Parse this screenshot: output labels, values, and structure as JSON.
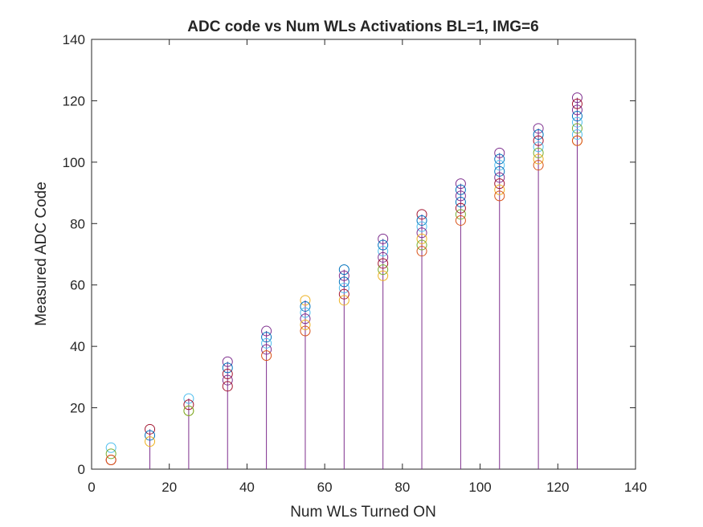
{
  "chart_data": {
    "type": "scatter",
    "title": "ADC code vs Num WLs Activations BL=1, IMG=6",
    "xlabel": "Num WLs Turned ON",
    "ylabel": "Measured ADC Code",
    "xlim": [
      0,
      140
    ],
    "ylim": [
      0,
      140
    ],
    "xticks": [
      "0",
      "20",
      "40",
      "60",
      "80",
      "100",
      "120",
      "140"
    ],
    "yticks": [
      "0",
      "20",
      "40",
      "60",
      "80",
      "100",
      "120",
      "140"
    ],
    "grid": false,
    "legend": "none",
    "marker": "circle",
    "stems": {
      "x": [
        15,
        25,
        35,
        45,
        55,
        65,
        75,
        85,
        95,
        105,
        115,
        125
      ],
      "y": [
        13,
        23,
        35,
        45,
        55,
        65,
        75,
        83,
        93,
        103,
        111,
        121
      ],
      "color": "#7E2F8E"
    },
    "series_colors": [
      "#0072BD",
      "#D95319",
      "#EDB120",
      "#7E2F8E",
      "#77AC30",
      "#4DBEEE",
      "#A2142F"
    ],
    "points": [
      {
        "x": 5,
        "y": 7,
        "color": "#4DBEEE"
      },
      {
        "x": 5,
        "y": 5,
        "color": "#77AC30"
      },
      {
        "x": 5,
        "y": 3,
        "color": "#A2142F"
      },
      {
        "x": 5,
        "y": 3,
        "color": "#D95319"
      },
      {
        "x": 15,
        "y": 13,
        "color": "#A2142F"
      },
      {
        "x": 15,
        "y": 11,
        "color": "#0072BD"
      },
      {
        "x": 15,
        "y": 9,
        "color": "#EDB120"
      },
      {
        "x": 25,
        "y": 23,
        "color": "#4DBEEE"
      },
      {
        "x": 25,
        "y": 21,
        "color": "#A2142F"
      },
      {
        "x": 25,
        "y": 19,
        "color": "#EDB120"
      },
      {
        "x": 25,
        "y": 19,
        "color": "#77AC30"
      },
      {
        "x": 35,
        "y": 35,
        "color": "#7E2F8E"
      },
      {
        "x": 35,
        "y": 33,
        "color": "#0072BD"
      },
      {
        "x": 35,
        "y": 31,
        "color": "#A2142F"
      },
      {
        "x": 35,
        "y": 29,
        "color": "#7E2F8E"
      },
      {
        "x": 35,
        "y": 27,
        "color": "#A2142F"
      },
      {
        "x": 45,
        "y": 45,
        "color": "#7E2F8E"
      },
      {
        "x": 45,
        "y": 43,
        "color": "#0072BD"
      },
      {
        "x": 45,
        "y": 41,
        "color": "#4DBEEE"
      },
      {
        "x": 45,
        "y": 39,
        "color": "#7E2F8E"
      },
      {
        "x": 45,
        "y": 37,
        "color": "#D95319"
      },
      {
        "x": 55,
        "y": 55,
        "color": "#EDB120"
      },
      {
        "x": 55,
        "y": 53,
        "color": "#0072BD"
      },
      {
        "x": 55,
        "y": 51,
        "color": "#4DBEEE"
      },
      {
        "x": 55,
        "y": 49,
        "color": "#7E2F8E"
      },
      {
        "x": 55,
        "y": 47,
        "color": "#EDB120"
      },
      {
        "x": 55,
        "y": 45,
        "color": "#D95319"
      },
      {
        "x": 65,
        "y": 65,
        "color": "#0072BD"
      },
      {
        "x": 65,
        "y": 63,
        "color": "#7E2F8E"
      },
      {
        "x": 65,
        "y": 61,
        "color": "#0072BD"
      },
      {
        "x": 65,
        "y": 59,
        "color": "#4DBEEE"
      },
      {
        "x": 65,
        "y": 57,
        "color": "#A2142F"
      },
      {
        "x": 65,
        "y": 55,
        "color": "#EDB120"
      },
      {
        "x": 75,
        "y": 75,
        "color": "#7E2F8E"
      },
      {
        "x": 75,
        "y": 73,
        "color": "#0072BD"
      },
      {
        "x": 75,
        "y": 71,
        "color": "#4DBEEE"
      },
      {
        "x": 75,
        "y": 69,
        "color": "#7E2F8E"
      },
      {
        "x": 75,
        "y": 67,
        "color": "#A2142F"
      },
      {
        "x": 75,
        "y": 65,
        "color": "#77AC30"
      },
      {
        "x": 75,
        "y": 63,
        "color": "#EDB120"
      },
      {
        "x": 85,
        "y": 83,
        "color": "#A2142F"
      },
      {
        "x": 85,
        "y": 81,
        "color": "#0072BD"
      },
      {
        "x": 85,
        "y": 79,
        "color": "#4DBEEE"
      },
      {
        "x": 85,
        "y": 77,
        "color": "#7E2F8E"
      },
      {
        "x": 85,
        "y": 75,
        "color": "#EDB120"
      },
      {
        "x": 85,
        "y": 73,
        "color": "#77AC30"
      },
      {
        "x": 85,
        "y": 71,
        "color": "#D95319"
      },
      {
        "x": 95,
        "y": 93,
        "color": "#7E2F8E"
      },
      {
        "x": 95,
        "y": 91,
        "color": "#0072BD"
      },
      {
        "x": 95,
        "y": 89,
        "color": "#7E2F8E"
      },
      {
        "x": 95,
        "y": 87,
        "color": "#0072BD"
      },
      {
        "x": 95,
        "y": 85,
        "color": "#A2142F"
      },
      {
        "x": 95,
        "y": 83,
        "color": "#77AC30"
      },
      {
        "x": 95,
        "y": 81,
        "color": "#D95319"
      },
      {
        "x": 105,
        "y": 103,
        "color": "#7E2F8E"
      },
      {
        "x": 105,
        "y": 101,
        "color": "#0072BD"
      },
      {
        "x": 105,
        "y": 99,
        "color": "#4DBEEE"
      },
      {
        "x": 105,
        "y": 97,
        "color": "#0072BD"
      },
      {
        "x": 105,
        "y": 95,
        "color": "#7E2F8E"
      },
      {
        "x": 105,
        "y": 93,
        "color": "#A2142F"
      },
      {
        "x": 105,
        "y": 91,
        "color": "#EDB120"
      },
      {
        "x": 105,
        "y": 89,
        "color": "#D95319"
      },
      {
        "x": 115,
        "y": 111,
        "color": "#7E2F8E"
      },
      {
        "x": 115,
        "y": 109,
        "color": "#0072BD"
      },
      {
        "x": 115,
        "y": 107,
        "color": "#A2142F"
      },
      {
        "x": 115,
        "y": 105,
        "color": "#4DBEEE"
      },
      {
        "x": 115,
        "y": 103,
        "color": "#77AC30"
      },
      {
        "x": 115,
        "y": 101,
        "color": "#EDB120"
      },
      {
        "x": 115,
        "y": 99,
        "color": "#D95319"
      },
      {
        "x": 125,
        "y": 121,
        "color": "#7E2F8E"
      },
      {
        "x": 125,
        "y": 119,
        "color": "#A2142F"
      },
      {
        "x": 125,
        "y": 117,
        "color": "#7E2F8E"
      },
      {
        "x": 125,
        "y": 115,
        "color": "#0072BD"
      },
      {
        "x": 125,
        "y": 113,
        "color": "#4DBEEE"
      },
      {
        "x": 125,
        "y": 111,
        "color": "#77AC30"
      },
      {
        "x": 125,
        "y": 109,
        "color": "#4DBEEE"
      },
      {
        "x": 125,
        "y": 107,
        "color": "#EDB120"
      },
      {
        "x": 125,
        "y": 107,
        "color": "#D95319"
      }
    ]
  }
}
